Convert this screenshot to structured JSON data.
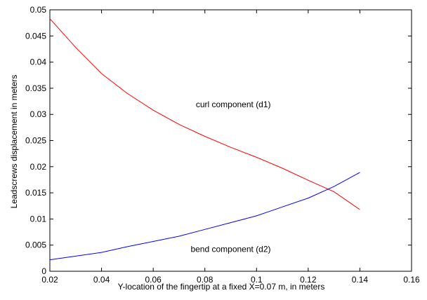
{
  "chart_data": {
    "type": "line",
    "title": "",
    "xlabel": "Y-location of the fingertip at a fixed X=0.07 m, in meters",
    "ylabel": "Leadscrews displacement in meters",
    "xlim": [
      0.02,
      0.16
    ],
    "ylim": [
      0,
      0.05
    ],
    "xticks": [
      0.02,
      0.04,
      0.06,
      0.08,
      0.1,
      0.12,
      0.14,
      0.16
    ],
    "xtick_labels": [
      "0.02",
      "0.04",
      "0.06",
      "0.08",
      "0.1",
      "0.12",
      "0.14",
      "0.16"
    ],
    "yticks": [
      0,
      0.005,
      0.01,
      0.015,
      0.02,
      0.025,
      0.03,
      0.035,
      0.04,
      0.045,
      0.05
    ],
    "ytick_labels": [
      "0",
      "0.005",
      "0.01",
      "0.015",
      "0.02",
      "0.025",
      "0.03",
      "0.035",
      "0.04",
      "0.045",
      "0.05"
    ],
    "grid": false,
    "series": [
      {
        "color": "#ff0000",
        "x": [
          0.02,
          0.03,
          0.04,
          0.05,
          0.06,
          0.07,
          0.08,
          0.09,
          0.1,
          0.11,
          0.12,
          0.13,
          0.14
        ],
        "y": [
          0.0483,
          0.0428,
          0.0378,
          0.034,
          0.0308,
          0.0281,
          0.0258,
          0.0237,
          0.0218,
          0.0197,
          0.0174,
          0.0152,
          0.0118
        ]
      },
      {
        "color": "#0000ff",
        "x": [
          0.02,
          0.03,
          0.04,
          0.05,
          0.06,
          0.07,
          0.08,
          0.09,
          0.1,
          0.11,
          0.12,
          0.13,
          0.14
        ],
        "y": [
          0.0022,
          0.0029,
          0.0036,
          0.0047,
          0.0057,
          0.0067,
          0.008,
          0.0093,
          0.0106,
          0.0123,
          0.014,
          0.0162,
          0.0189
        ]
      }
    ],
    "annotations": [
      {
        "text": "curl component (d1)",
        "x": 0.091,
        "y": 0.0314
      },
      {
        "text": "bend component (d2)",
        "x": 0.09,
        "y": 0.0037
      }
    ]
  }
}
